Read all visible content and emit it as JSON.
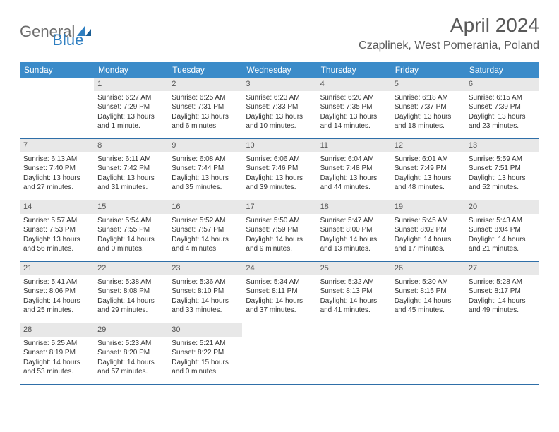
{
  "logo": {
    "word1": "General",
    "word2": "Blue",
    "accent_color": "#2f7fc1",
    "grey_color": "#6b6b6b"
  },
  "title": "April 2024",
  "location": "Czaplinek, West Pomerania, Poland",
  "header_bg": "#3b8bc9",
  "header_text_color": "#ffffff",
  "daynum_bg": "#e8e8e8",
  "border_color": "#2f6fa8",
  "day_names": [
    "Sunday",
    "Monday",
    "Tuesday",
    "Wednesday",
    "Thursday",
    "Friday",
    "Saturday"
  ],
  "weeks": [
    [
      null,
      {
        "n": "1",
        "sr": "6:27 AM",
        "ss": "7:29 PM",
        "dl": "13 hours and 1 minute."
      },
      {
        "n": "2",
        "sr": "6:25 AM",
        "ss": "7:31 PM",
        "dl": "13 hours and 6 minutes."
      },
      {
        "n": "3",
        "sr": "6:23 AM",
        "ss": "7:33 PM",
        "dl": "13 hours and 10 minutes."
      },
      {
        "n": "4",
        "sr": "6:20 AM",
        "ss": "7:35 PM",
        "dl": "13 hours and 14 minutes."
      },
      {
        "n": "5",
        "sr": "6:18 AM",
        "ss": "7:37 PM",
        "dl": "13 hours and 18 minutes."
      },
      {
        "n": "6",
        "sr": "6:15 AM",
        "ss": "7:39 PM",
        "dl": "13 hours and 23 minutes."
      }
    ],
    [
      {
        "n": "7",
        "sr": "6:13 AM",
        "ss": "7:40 PM",
        "dl": "13 hours and 27 minutes."
      },
      {
        "n": "8",
        "sr": "6:11 AM",
        "ss": "7:42 PM",
        "dl": "13 hours and 31 minutes."
      },
      {
        "n": "9",
        "sr": "6:08 AM",
        "ss": "7:44 PM",
        "dl": "13 hours and 35 minutes."
      },
      {
        "n": "10",
        "sr": "6:06 AM",
        "ss": "7:46 PM",
        "dl": "13 hours and 39 minutes."
      },
      {
        "n": "11",
        "sr": "6:04 AM",
        "ss": "7:48 PM",
        "dl": "13 hours and 44 minutes."
      },
      {
        "n": "12",
        "sr": "6:01 AM",
        "ss": "7:49 PM",
        "dl": "13 hours and 48 minutes."
      },
      {
        "n": "13",
        "sr": "5:59 AM",
        "ss": "7:51 PM",
        "dl": "13 hours and 52 minutes."
      }
    ],
    [
      {
        "n": "14",
        "sr": "5:57 AM",
        "ss": "7:53 PM",
        "dl": "13 hours and 56 minutes."
      },
      {
        "n": "15",
        "sr": "5:54 AM",
        "ss": "7:55 PM",
        "dl": "14 hours and 0 minutes."
      },
      {
        "n": "16",
        "sr": "5:52 AM",
        "ss": "7:57 PM",
        "dl": "14 hours and 4 minutes."
      },
      {
        "n": "17",
        "sr": "5:50 AM",
        "ss": "7:59 PM",
        "dl": "14 hours and 9 minutes."
      },
      {
        "n": "18",
        "sr": "5:47 AM",
        "ss": "8:00 PM",
        "dl": "14 hours and 13 minutes."
      },
      {
        "n": "19",
        "sr": "5:45 AM",
        "ss": "8:02 PM",
        "dl": "14 hours and 17 minutes."
      },
      {
        "n": "20",
        "sr": "5:43 AM",
        "ss": "8:04 PM",
        "dl": "14 hours and 21 minutes."
      }
    ],
    [
      {
        "n": "21",
        "sr": "5:41 AM",
        "ss": "8:06 PM",
        "dl": "14 hours and 25 minutes."
      },
      {
        "n": "22",
        "sr": "5:38 AM",
        "ss": "8:08 PM",
        "dl": "14 hours and 29 minutes."
      },
      {
        "n": "23",
        "sr": "5:36 AM",
        "ss": "8:10 PM",
        "dl": "14 hours and 33 minutes."
      },
      {
        "n": "24",
        "sr": "5:34 AM",
        "ss": "8:11 PM",
        "dl": "14 hours and 37 minutes."
      },
      {
        "n": "25",
        "sr": "5:32 AM",
        "ss": "8:13 PM",
        "dl": "14 hours and 41 minutes."
      },
      {
        "n": "26",
        "sr": "5:30 AM",
        "ss": "8:15 PM",
        "dl": "14 hours and 45 minutes."
      },
      {
        "n": "27",
        "sr": "5:28 AM",
        "ss": "8:17 PM",
        "dl": "14 hours and 49 minutes."
      }
    ],
    [
      {
        "n": "28",
        "sr": "5:25 AM",
        "ss": "8:19 PM",
        "dl": "14 hours and 53 minutes."
      },
      {
        "n": "29",
        "sr": "5:23 AM",
        "ss": "8:20 PM",
        "dl": "14 hours and 57 minutes."
      },
      {
        "n": "30",
        "sr": "5:21 AM",
        "ss": "8:22 PM",
        "dl": "15 hours and 0 minutes."
      },
      null,
      null,
      null,
      null
    ]
  ],
  "labels": {
    "sunrise": "Sunrise:",
    "sunset": "Sunset:",
    "daylight": "Daylight:"
  }
}
